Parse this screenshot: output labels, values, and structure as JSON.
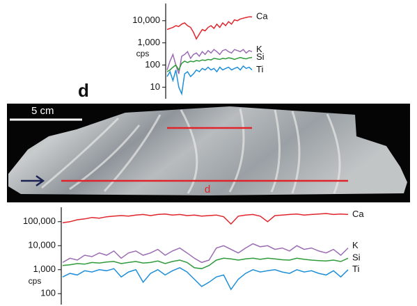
{
  "chart_data": [
    {
      "type": "line",
      "log_scale": true,
      "ylabel": "cps",
      "ylim": [
        3,
        60000
      ],
      "yticks": [
        10,
        100,
        {
          "value": 1000,
          "label": "1,000"
        },
        {
          "value": 10000,
          "label": "10,000"
        }
      ],
      "series": [
        {
          "name": "Ca",
          "color": "#e0242b",
          "values": [
            4000,
            4500,
            5000,
            6000,
            5500,
            7000,
            8000,
            6000,
            5000,
            3000,
            1500,
            2500,
            4000,
            3500,
            5000,
            6000,
            4500,
            7000,
            5000,
            8000,
            6000,
            9000,
            7000,
            11000,
            10000,
            12000,
            13000,
            14000,
            15000,
            15000
          ]
        },
        {
          "name": "K",
          "color": "#9b6bb3",
          "values": [
            60,
            150,
            300,
            100,
            40,
            250,
            300,
            400,
            200,
            300,
            350,
            250,
            400,
            300,
            450,
            350,
            500,
            400,
            300,
            450,
            500,
            400,
            350,
            500,
            450,
            400,
            500,
            350,
            450,
            400
          ]
        },
        {
          "name": "Si",
          "color": "#2e9a3a",
          "values": [
            50,
            60,
            80,
            100,
            60,
            120,
            150,
            130,
            150,
            140,
            160,
            150,
            170,
            160,
            180,
            170,
            200,
            190,
            180,
            200,
            190,
            210,
            200,
            180,
            200,
            220,
            200,
            190,
            210,
            220
          ]
        },
        {
          "name": "Ti",
          "color": "#1e8fd8",
          "values": [
            30,
            50,
            20,
            60,
            10,
            5,
            40,
            50,
            30,
            40,
            60,
            50,
            70,
            60,
            80,
            60,
            70,
            50,
            80,
            60,
            70,
            80,
            60,
            70,
            80,
            60,
            90,
            70,
            80,
            60
          ]
        }
      ]
    },
    {
      "type": "line",
      "log_scale": true,
      "ylabel": "cps",
      "ylim": [
        35,
        400000
      ],
      "yticks": [
        100,
        {
          "value": 1000,
          "label": "1,000"
        },
        {
          "value": 10000,
          "label": "10,000"
        },
        {
          "value": 100000,
          "label": "100,000"
        }
      ],
      "series": [
        {
          "name": "Ca",
          "color": "#e0242b",
          "values": [
            90000,
            100000,
            120000,
            130000,
            150000,
            140000,
            160000,
            170000,
            180000,
            170000,
            190000,
            200000,
            180000,
            200000,
            210000,
            190000,
            200000,
            180000,
            190000,
            170000,
            180000,
            190000,
            160000,
            80000,
            170000,
            190000,
            200000,
            170000,
            100000,
            180000,
            190000,
            200000,
            210000,
            190000,
            200000,
            210000,
            220000,
            200000,
            210000,
            200000
          ]
        },
        {
          "name": "K",
          "color": "#9b6bb3",
          "values": [
            2000,
            3000,
            2500,
            4000,
            3500,
            5000,
            4000,
            6000,
            3000,
            5000,
            6000,
            4000,
            5000,
            7000,
            4000,
            6000,
            8000,
            5000,
            3000,
            2000,
            2500,
            8000,
            10000,
            7000,
            5000,
            8000,
            12000,
            9000,
            10000,
            7000,
            8000,
            6000,
            10000,
            7000,
            8000,
            6000,
            5000,
            7000,
            4000,
            8000
          ]
        },
        {
          "name": "Si",
          "color": "#2e9a3a",
          "values": [
            1500,
            1600,
            1800,
            1700,
            2000,
            1900,
            2100,
            2200,
            1800,
            2000,
            2200,
            1900,
            2000,
            2300,
            1800,
            2200,
            2500,
            2000,
            1200,
            1100,
            1500,
            2500,
            3000,
            2800,
            2500,
            2800,
            3000,
            2700,
            3000,
            2800,
            2600,
            2500,
            3000,
            2700,
            2500,
            2400,
            2300,
            2500,
            2200,
            3000
          ]
        },
        {
          "name": "Ti",
          "color": "#1e8fd8",
          "values": [
            500,
            700,
            600,
            900,
            800,
            1000,
            900,
            1100,
            500,
            800,
            1000,
            300,
            700,
            1000,
            600,
            900,
            1200,
            800,
            400,
            200,
            300,
            500,
            600,
            150,
            400,
            700,
            1000,
            800,
            900,
            1000,
            800,
            700,
            1000,
            800,
            900,
            700,
            600,
            900,
            500,
            1000
          ]
        }
      ]
    }
  ],
  "photo": {
    "panel_label": "d",
    "scale_bar": "5 cm",
    "transect_label": "d"
  }
}
